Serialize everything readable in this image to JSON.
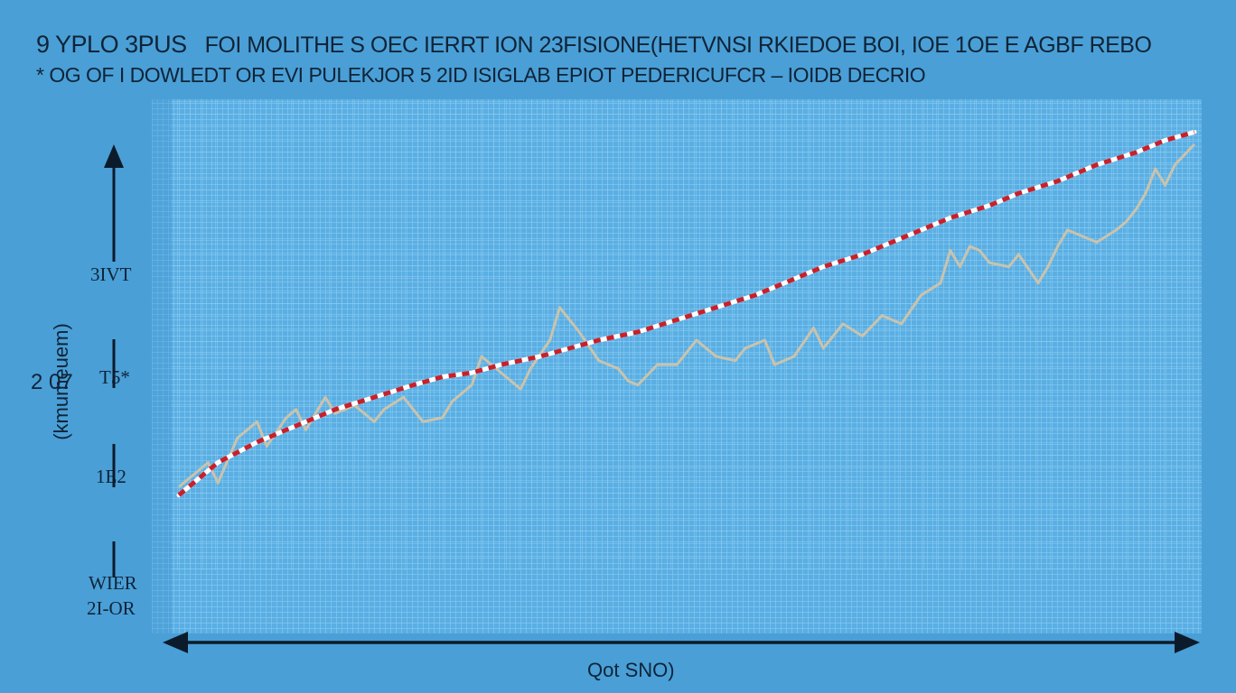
{
  "header": {
    "prefix": "9 YPLO 3PUS",
    "line1": "FOI MOLITHE S OEC IERRT ION 23FISIONE(HETVNSI RKIEDOE BOI, IOE 1OE E AGBF REBO",
    "line2": "* OG OF I DOWLEDT OR EVI PULEKJOR 5 2ID ISIGLAB EPIOT PEDERICUFCR – IOIDB DECRIO"
  },
  "axis": {
    "y_label": "2 07",
    "y_unit": "(kmumeuem)",
    "y_ticks": [
      "3IVT",
      "T5*",
      "1E2",
      "WIER"
    ],
    "y_tick_extra": "2I-OR",
    "x_label": "Qot SNO)"
  },
  "colors": {
    "background": "#4a9fd6",
    "grid": "#7fc6ef",
    "raw_series": "#c9c3ad",
    "trend_red": "#c8202a",
    "trend_white": "#ffffff",
    "axis": "#0c1b2b"
  },
  "chart_data": {
    "type": "line",
    "x_range": [
      0,
      100
    ],
    "y_range": [
      0,
      100
    ],
    "grid": true,
    "series": [
      {
        "style": "raw",
        "values": [
          [
            0,
            16
          ],
          [
            2,
            20
          ],
          [
            3,
            22
          ],
          [
            4,
            17
          ],
          [
            6,
            28
          ],
          [
            8,
            32
          ],
          [
            9,
            26
          ],
          [
            11,
            33
          ],
          [
            12,
            35
          ],
          [
            13,
            30
          ],
          [
            15,
            38
          ],
          [
            16,
            34
          ],
          [
            18,
            36
          ],
          [
            20,
            32
          ],
          [
            21,
            35
          ],
          [
            23,
            38
          ],
          [
            25,
            32
          ],
          [
            27,
            33
          ],
          [
            28,
            37
          ],
          [
            30,
            41
          ],
          [
            31,
            48
          ],
          [
            33,
            44
          ],
          [
            35,
            40
          ],
          [
            36,
            45
          ],
          [
            38,
            52
          ],
          [
            39,
            60
          ],
          [
            41,
            54
          ],
          [
            43,
            47
          ],
          [
            45,
            45
          ],
          [
            46,
            42
          ],
          [
            47,
            41
          ],
          [
            49,
            46
          ],
          [
            51,
            46
          ],
          [
            53,
            52
          ],
          [
            55,
            48
          ],
          [
            57,
            47
          ],
          [
            58,
            50
          ],
          [
            60,
            52
          ],
          [
            61,
            46
          ],
          [
            63,
            48
          ],
          [
            65,
            55
          ],
          [
            66,
            50
          ],
          [
            68,
            56
          ],
          [
            70,
            53
          ],
          [
            72,
            58
          ],
          [
            74,
            56
          ],
          [
            76,
            63
          ],
          [
            78,
            66
          ],
          [
            79,
            74
          ],
          [
            80,
            70
          ],
          [
            81,
            75
          ],
          [
            82,
            74
          ],
          [
            83,
            71
          ],
          [
            85,
            70
          ],
          [
            86,
            73
          ],
          [
            88,
            66
          ],
          [
            89,
            70
          ],
          [
            90,
            75
          ],
          [
            91,
            79
          ],
          [
            93,
            77
          ],
          [
            94,
            76
          ],
          [
            96,
            79
          ],
          [
            97,
            81
          ],
          [
            98,
            84
          ],
          [
            99,
            88
          ],
          [
            100,
            94
          ],
          [
            101,
            90
          ],
          [
            102,
            95
          ],
          [
            104,
            100
          ]
        ]
      },
      {
        "style": "trend",
        "values": [
          [
            0,
            14
          ],
          [
            4,
            22
          ],
          [
            8,
            27
          ],
          [
            12,
            31
          ],
          [
            16,
            35
          ],
          [
            20,
            38
          ],
          [
            24,
            41
          ],
          [
            27,
            43
          ],
          [
            30,
            44
          ],
          [
            33,
            46
          ],
          [
            37,
            48
          ],
          [
            40,
            50
          ],
          [
            43,
            52
          ],
          [
            47,
            54
          ],
          [
            51,
            57
          ],
          [
            55,
            60
          ],
          [
            59,
            63
          ],
          [
            62,
            66
          ],
          [
            66,
            70
          ],
          [
            70,
            73
          ],
          [
            73,
            76
          ],
          [
            76,
            79
          ],
          [
            79,
            82
          ],
          [
            83,
            85
          ],
          [
            86,
            88
          ],
          [
            90,
            91
          ],
          [
            94,
            95
          ],
          [
            98,
            98
          ],
          [
            101,
            101
          ],
          [
            104,
            103
          ]
        ]
      }
    ]
  }
}
